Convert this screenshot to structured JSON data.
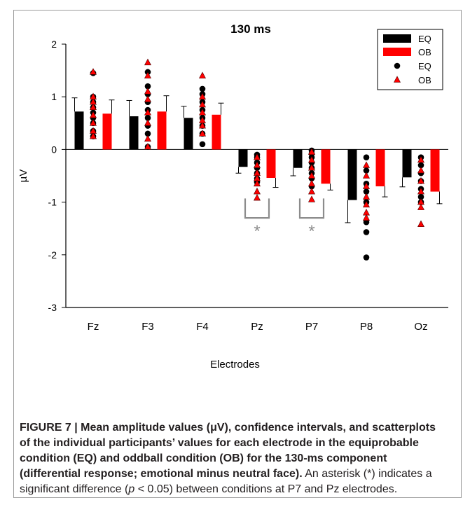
{
  "chart_data": {
    "type": "bar",
    "title": "130 ms",
    "xlabel": "Electrodes",
    "ylabel": "µV",
    "ylim": [
      -3,
      2
    ],
    "yticks": [
      -3,
      -2,
      -1,
      0,
      1,
      2
    ],
    "categories": [
      "Fz",
      "F3",
      "F4",
      "Pz",
      "P7",
      "P8",
      "Oz"
    ],
    "series": [
      {
        "name": "EQ",
        "color": "#000000",
        "values": [
          0.72,
          0.63,
          0.6,
          -0.33,
          -0.35,
          -0.96,
          -0.53
        ],
        "errors": [
          0.26,
          0.3,
          0.22,
          0.12,
          0.15,
          0.43,
          0.18
        ]
      },
      {
        "name": "OB",
        "color": "#ff0000",
        "values": [
          0.68,
          0.72,
          0.66,
          -0.54,
          -0.65,
          -0.7,
          -0.8
        ],
        "errors": [
          0.26,
          0.3,
          0.22,
          0.18,
          0.12,
          0.2,
          0.23
        ]
      }
    ],
    "scatter": [
      {
        "name": "EQ",
        "marker": "circle",
        "color": "#000000",
        "points": [
          [
            0.25,
            0.35,
            0.5,
            0.6,
            0.7,
            0.8,
            0.9,
            1.0,
            1.45
          ],
          [
            0.05,
            0.3,
            0.45,
            0.6,
            0.75,
            0.9,
            1.05,
            1.2,
            1.47
          ],
          [
            0.1,
            0.3,
            0.45,
            0.6,
            0.75,
            0.9,
            1.05,
            1.15
          ],
          [
            -0.1,
            -0.15,
            -0.25,
            -0.35,
            -0.45,
            -0.55,
            -0.62
          ],
          [
            -0.02,
            -0.08,
            -0.15,
            -0.25,
            -0.35,
            -0.45,
            -0.55,
            -0.7
          ],
          [
            -0.15,
            -0.4,
            -0.65,
            -0.8,
            -1.0,
            -1.38,
            -1.57,
            -2.05
          ],
          [
            -0.15,
            -0.3,
            -0.45,
            -0.6,
            -0.75,
            -0.9,
            -1.0
          ]
        ]
      },
      {
        "name": "OB",
        "marker": "triangle",
        "color": "#ff0000",
        "points": [
          [
            0.25,
            0.35,
            0.5,
            0.65,
            0.8,
            0.9,
            1.0,
            1.47
          ],
          [
            0.05,
            0.2,
            0.5,
            0.7,
            0.95,
            1.1,
            1.4,
            1.65
          ],
          [
            0.3,
            0.45,
            0.55,
            0.7,
            0.85,
            1.0,
            1.4
          ],
          [
            -0.15,
            -0.3,
            -0.45,
            -0.55,
            -0.65,
            -0.8,
            -0.92
          ],
          [
            -0.05,
            -0.2,
            -0.35,
            -0.5,
            -0.65,
            -0.8,
            -0.95
          ],
          [
            -0.3,
            -0.5,
            -0.7,
            -0.9,
            -1.05,
            -1.2,
            -1.3
          ],
          [
            -0.2,
            -0.4,
            -0.6,
            -0.8,
            -1.0,
            -1.1,
            -1.42
          ]
        ]
      }
    ],
    "legend": {
      "placement": "top-right",
      "entries": [
        "EQ",
        "OB",
        "EQ",
        "OB"
      ]
    },
    "significance": {
      "marker": "*",
      "categories": [
        "Pz",
        "P7"
      ]
    }
  },
  "caption": {
    "bold": "FIGURE 7 | Mean amplitude values (μV), confidence intervals, and scatterplots of the individual participants’ values for each electrode in the equiprobable condition (EQ) and oddball condition (OB) for the 130-ms component (differential response; emotional minus neutral face).",
    "text_before_p": " An asterisk (*) indicates a significant difference (",
    "p_symbol": "p",
    "text_after_p": " < 0.05) between conditions at P7 and Pz electrodes."
  }
}
